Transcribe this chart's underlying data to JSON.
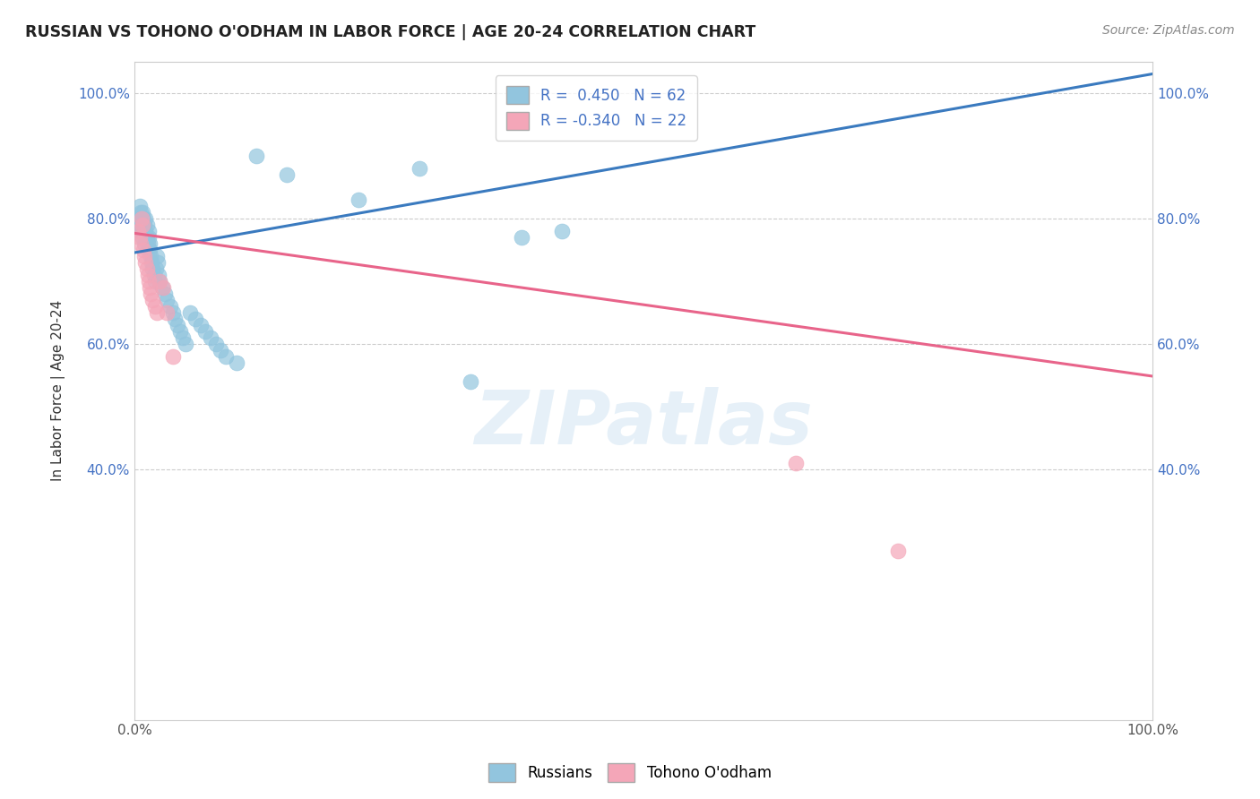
{
  "title": "RUSSIAN VS TOHONO O'ODHAM IN LABOR FORCE | AGE 20-24 CORRELATION CHART",
  "source": "Source: ZipAtlas.com",
  "ylabel": "In Labor Force | Age 20-24",
  "watermark": "ZIPatlas",
  "legend_entries": [
    "Russians",
    "Tohono O'odham"
  ],
  "r_russian": 0.45,
  "n_russian": 62,
  "r_tohono": -0.34,
  "n_tohono": 22,
  "russian_color": "#92c5de",
  "tohono_color": "#f4a6b8",
  "russian_line_color": "#3a7abf",
  "tohono_line_color": "#e8648a",
  "xlim": [
    0.0,
    1.0
  ],
  "ylim": [
    0.0,
    1.05
  ],
  "x_ticks": [
    0.0,
    1.0
  ],
  "x_tick_labels": [
    "0.0%",
    "100.0%"
  ],
  "y_ticks": [
    0.4,
    0.6,
    0.8,
    1.0
  ],
  "y_tick_labels": [
    "40.0%",
    "60.0%",
    "80.0%",
    "100.0%"
  ],
  "russian_x": [
    0.003,
    0.004,
    0.005,
    0.005,
    0.005,
    0.006,
    0.006,
    0.007,
    0.007,
    0.008,
    0.008,
    0.008,
    0.009,
    0.009,
    0.01,
    0.01,
    0.011,
    0.011,
    0.012,
    0.012,
    0.013,
    0.013,
    0.014,
    0.014,
    0.015,
    0.015,
    0.016,
    0.017,
    0.018,
    0.019,
    0.02,
    0.021,
    0.022,
    0.023,
    0.024,
    0.025,
    0.027,
    0.03,
    0.032,
    0.035,
    0.038,
    0.04,
    0.042,
    0.045,
    0.048,
    0.05,
    0.055,
    0.06,
    0.065,
    0.07,
    0.075,
    0.08,
    0.085,
    0.09,
    0.1,
    0.12,
    0.15,
    0.38,
    0.42,
    0.22,
    0.28,
    0.33
  ],
  "russian_y": [
    0.8,
    0.79,
    0.78,
    0.8,
    0.82,
    0.81,
    0.79,
    0.78,
    0.8,
    0.79,
    0.81,
    0.77,
    0.78,
    0.8,
    0.79,
    0.76,
    0.78,
    0.8,
    0.79,
    0.77,
    0.76,
    0.75,
    0.78,
    0.77,
    0.76,
    0.75,
    0.74,
    0.73,
    0.72,
    0.71,
    0.7,
    0.72,
    0.74,
    0.73,
    0.71,
    0.7,
    0.69,
    0.68,
    0.67,
    0.66,
    0.65,
    0.64,
    0.63,
    0.62,
    0.61,
    0.6,
    0.65,
    0.64,
    0.63,
    0.62,
    0.61,
    0.6,
    0.59,
    0.58,
    0.57,
    0.9,
    0.87,
    0.77,
    0.78,
    0.83,
    0.88,
    0.54
  ],
  "tohono_x": [
    0.004,
    0.005,
    0.006,
    0.007,
    0.008,
    0.009,
    0.01,
    0.011,
    0.012,
    0.013,
    0.014,
    0.015,
    0.016,
    0.018,
    0.02,
    0.022,
    0.025,
    0.028,
    0.032,
    0.038,
    0.65,
    0.75
  ],
  "tohono_y": [
    0.78,
    0.77,
    0.76,
    0.8,
    0.79,
    0.75,
    0.74,
    0.73,
    0.72,
    0.71,
    0.7,
    0.69,
    0.68,
    0.67,
    0.66,
    0.65,
    0.7,
    0.69,
    0.65,
    0.58,
    0.41,
    0.27
  ],
  "blue_line_x0": 0.0,
  "blue_line_y0": 0.745,
  "blue_line_x1": 1.0,
  "blue_line_y1": 1.03,
  "pink_line_x0": 0.0,
  "pink_line_y0": 0.776,
  "pink_line_x1": 1.0,
  "pink_line_y1": 0.548
}
